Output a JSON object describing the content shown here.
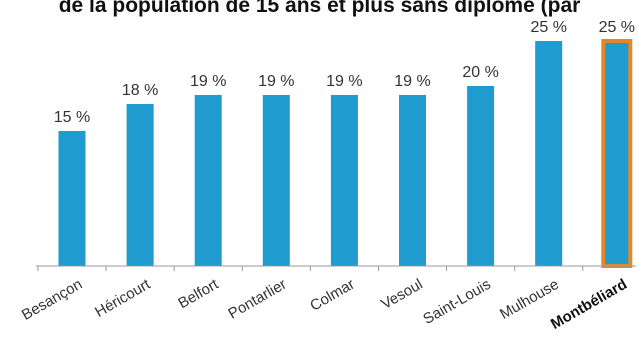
{
  "chart_data": {
    "type": "bar",
    "title": "de la population de 15 ans et plus sans diplôme (par",
    "xlabel": "",
    "ylabel": "",
    "ylim": [
      0,
      26
    ],
    "categories": [
      "Besançon",
      "Héricourt",
      "Belfort",
      "Pontarlier",
      "Colmar",
      "Vesoul",
      "Saint-Louis",
      "Mulhouse",
      "Montbéliard"
    ],
    "values": [
      15,
      18,
      19,
      19,
      19,
      19,
      20,
      25,
      25
    ],
    "data_labels": [
      "15 %",
      "18 %",
      "19 %",
      "19 %",
      "19 %",
      "19 %",
      "20 %",
      "25 %",
      "25 %"
    ],
    "highlighted_category": "Montbéliard",
    "grid": false,
    "legend": "none",
    "colors": {
      "bar": "#1f9bcf",
      "highlight_border": "#e0892b",
      "axis": "#9a9a9a",
      "text": "#333333"
    }
  }
}
